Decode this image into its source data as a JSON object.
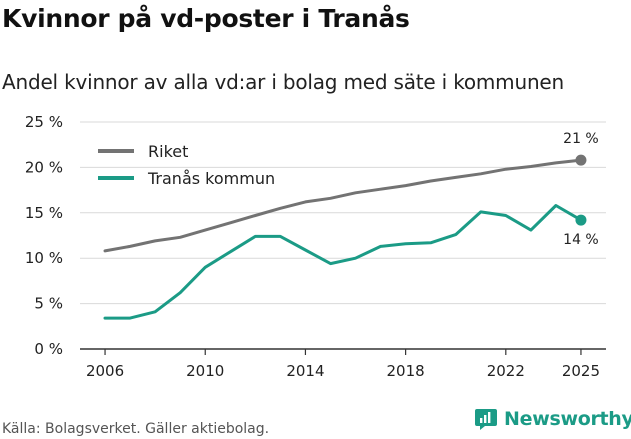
{
  "header": {
    "title": "Kvinnor på vd-poster i Tranås",
    "subtitle": "Andel kvinnor av alla vd:ar i bolag med säte i kommunen"
  },
  "footer": {
    "source": "Källa: Bolagsverket. Gäller aktiebolag.",
    "brand": "Newsworthy"
  },
  "colors": {
    "riket": "#737373",
    "tranas": "#1b9b86",
    "grid": "#d9d9d9",
    "axis": "#333333"
  },
  "chart_data": {
    "type": "line",
    "title": "Kvinnor på vd-poster i Tranås",
    "subtitle": "Andel kvinnor av alla vd:ar i bolag med säte i kommunen",
    "xlabel": "",
    "ylabel": "",
    "xlim": [
      2005,
      2026
    ],
    "ylim": [
      0,
      25
    ],
    "x_ticks": [
      {
        "value": 2006,
        "label": "2006"
      },
      {
        "value": 2010,
        "label": "2010"
      },
      {
        "value": 2014,
        "label": "2014"
      },
      {
        "value": 2018,
        "label": "2018"
      },
      {
        "value": 2022,
        "label": "2022"
      },
      {
        "value": 2025,
        "label": "2025"
      }
    ],
    "y_ticks": [
      {
        "value": 0,
        "label": "0 %"
      },
      {
        "value": 5,
        "label": "5 %"
      },
      {
        "value": 10,
        "label": "10 %"
      },
      {
        "value": 15,
        "label": "15 %"
      },
      {
        "value": 20,
        "label": "20 %"
      },
      {
        "value": 25,
        "label": "25 %"
      }
    ],
    "grid": true,
    "legend_position": "top-left",
    "x": [
      2006,
      2007,
      2008,
      2009,
      2010,
      2011,
      2012,
      2013,
      2014,
      2015,
      2016,
      2017,
      2018,
      2019,
      2020,
      2021,
      2022,
      2023,
      2024,
      2025
    ],
    "series": [
      {
        "name": "Riket",
        "color_key": "riket",
        "values": [
          10.8,
          11.3,
          11.9,
          12.3,
          13.1,
          13.9,
          14.7,
          15.5,
          16.2,
          16.6,
          17.2,
          17.6,
          18.0,
          18.5,
          18.9,
          19.3,
          19.8,
          20.1,
          20.5,
          20.8
        ],
        "end_label": "21 %",
        "end_label_position": "above"
      },
      {
        "name": "Tranås kommun",
        "color_key": "tranas",
        "values": [
          3.4,
          3.4,
          4.1,
          6.2,
          9.0,
          10.7,
          12.4,
          12.4,
          10.9,
          9.4,
          10.0,
          11.3,
          11.6,
          11.7,
          12.6,
          15.1,
          14.7,
          13.1,
          15.8,
          14.2
        ],
        "end_label": "14 %",
        "end_label_position": "below"
      }
    ]
  }
}
